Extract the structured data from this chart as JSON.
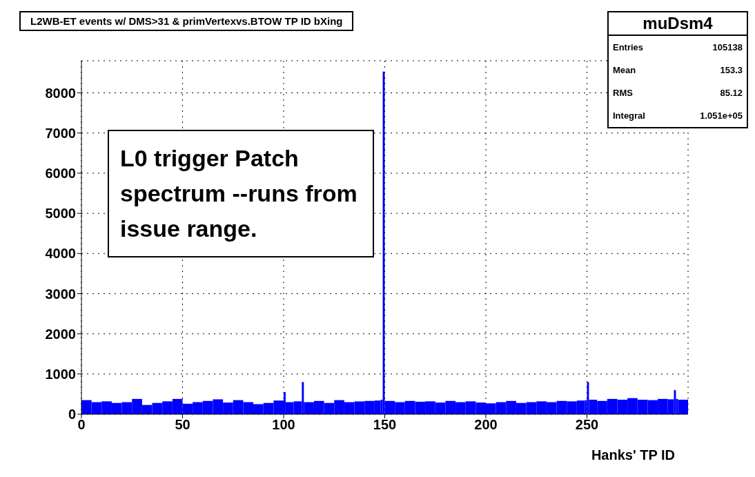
{
  "chart_data": {
    "type": "histogram",
    "title": "L2WB-ET events w/ DMS>31 & primVertexvs.BTOW TP ID bXing",
    "xlabel": "Hanks' TP ID",
    "bins": [
      0,
      5,
      10,
      15,
      20,
      25,
      30,
      35,
      40,
      45,
      50,
      55,
      60,
      65,
      70,
      75,
      80,
      85,
      90,
      95,
      100,
      101,
      105,
      109,
      110,
      115,
      120,
      125,
      130,
      135,
      140,
      145,
      148,
      149,
      150,
      155,
      160,
      165,
      170,
      175,
      180,
      185,
      190,
      195,
      200,
      205,
      210,
      215,
      220,
      225,
      230,
      235,
      240,
      245,
      249,
      250,
      251,
      255,
      260,
      265,
      270,
      275,
      280,
      285,
      290,
      293,
      294,
      295,
      300
    ],
    "values": [
      350,
      300,
      320,
      280,
      300,
      380,
      230,
      280,
      320,
      380,
      260,
      300,
      330,
      370,
      290,
      350,
      300,
      250,
      280,
      340,
      550,
      300,
      320,
      800,
      300,
      330,
      280,
      350,
      300,
      320,
      330,
      340,
      360,
      8530,
      330,
      300,
      330,
      310,
      320,
      290,
      330,
      300,
      320,
      290,
      270,
      300,
      330,
      280,
      300,
      320,
      300,
      330,
      320,
      340,
      350,
      800,
      360,
      330,
      380,
      360,
      400,
      360,
      350,
      380,
      370,
      600,
      380,
      360
    ],
    "color": "#0000ff",
    "xlim": [
      0,
      300
    ],
    "xticks": [
      0,
      50,
      100,
      150,
      200,
      250
    ],
    "ylim": [
      0,
      8800
    ],
    "yticks": [
      0,
      1000,
      2000,
      3000,
      4000,
      5000,
      6000,
      7000,
      8000
    ],
    "grid": true,
    "annotations": [
      "muDsm4",
      "Entries 105138",
      "Mean 153.3",
      "RMS 85.12",
      "Integral 1.051e+05",
      "L0 trigger Patch spectrum --runs from issue range."
    ]
  }
}
